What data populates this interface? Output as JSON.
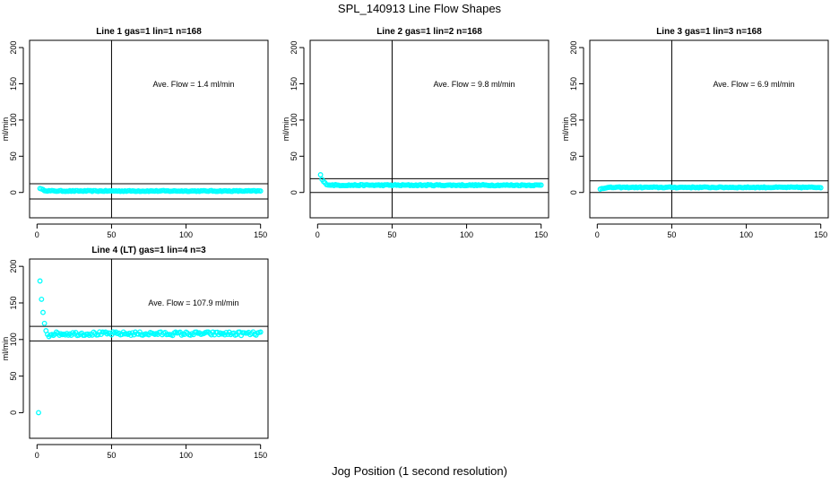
{
  "figure": {
    "title": "SPL_140913  Line Flow Shapes",
    "xlabel": "Jog Position (1 second resolution)"
  },
  "chart_data": [
    {
      "type": "scatter",
      "title": "Line 1 gas=1 lin=1 n=168",
      "ylabel": "ml/min",
      "xlim": [
        -5,
        155
      ],
      "ylim": [
        -35,
        210
      ],
      "x_ticks": [
        0,
        50,
        100,
        150
      ],
      "y_ticks": [
        0,
        50,
        100,
        150,
        200
      ],
      "annotation": "Ave. Flow =  1.4  ml/min",
      "vline_x": 50,
      "hlines_y": [
        12,
        -9
      ],
      "point_color": "#00ffff",
      "series": [
        {
          "start_value": 6,
          "level": 2,
          "decay": 2.0,
          "noise": 0.6,
          "first_x": 2,
          "last_x": 150
        }
      ]
    },
    {
      "type": "scatter",
      "title": "Line 2 gas=1 lin=2 n=168",
      "ylabel": "ml/min",
      "xlim": [
        -5,
        155
      ],
      "ylim": [
        -35,
        210
      ],
      "x_ticks": [
        0,
        50,
        100,
        150
      ],
      "y_ticks": [
        0,
        50,
        100,
        150,
        200
      ],
      "annotation": "Ave. Flow =  9.8  ml/min",
      "vline_x": 50,
      "hlines_y": [
        19,
        0
      ],
      "point_color": "#00ffff",
      "series": [
        {
          "start_value": 24,
          "level": 10,
          "decay": 1.8,
          "noise": 0.8,
          "first_x": 2,
          "last_x": 150
        }
      ]
    },
    {
      "type": "scatter",
      "title": "Line 3 gas=1 lin=3 n=168",
      "ylabel": "ml/min",
      "xlim": [
        -5,
        155
      ],
      "ylim": [
        -35,
        210
      ],
      "x_ticks": [
        0,
        50,
        100,
        150
      ],
      "y_ticks": [
        0,
        50,
        100,
        150,
        200
      ],
      "annotation": "Ave. Flow =  6.9  ml/min",
      "vline_x": 50,
      "hlines_y": [
        16,
        0
      ],
      "point_color": "#00ffff",
      "series": [
        {
          "start_value": 5,
          "level": 7,
          "decay": 3.0,
          "noise": 0.6,
          "first_x": 2,
          "last_x": 150
        }
      ]
    },
    {
      "type": "scatter",
      "title": "Line 4 (LT) gas=1 lin=4 n=3",
      "ylabel": "ml/min",
      "xlim": [
        -5,
        155
      ],
      "ylim": [
        -35,
        210
      ],
      "x_ticks": [
        0,
        50,
        100,
        150
      ],
      "y_ticks": [
        0,
        50,
        100,
        150,
        200
      ],
      "annotation": "Ave. Flow =  107.9  ml/min",
      "vline_x": 50,
      "hlines_y": [
        118,
        98
      ],
      "point_color": "#00ffff",
      "series": [
        {
          "x": [
            1,
            2,
            3,
            4,
            5,
            6,
            7,
            8,
            9
          ],
          "y": [
            0,
            180,
            155,
            137,
            122,
            112,
            107,
            104,
            106
          ]
        },
        {
          "start_value": 108,
          "level": 108,
          "decay": 1.0,
          "noise": 2.5,
          "first_x": 10,
          "last_x": 150
        }
      ]
    }
  ]
}
